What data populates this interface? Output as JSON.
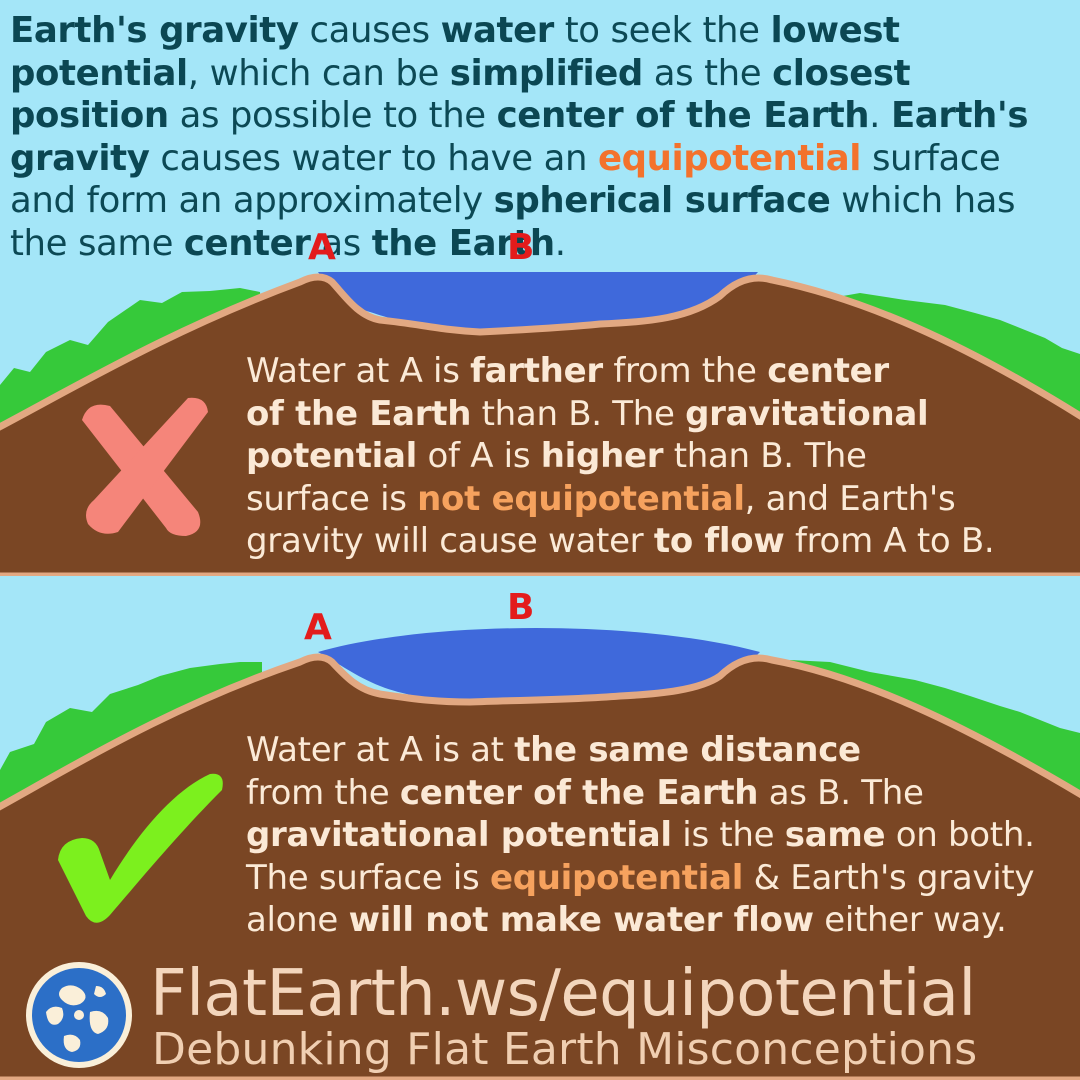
{
  "intro": {
    "segments": [
      {
        "t": "Earth's gravity",
        "s": "b"
      },
      {
        "t": " causes ",
        "s": ""
      },
      {
        "t": "water",
        "s": "b"
      },
      {
        "t": " to seek the ",
        "s": ""
      },
      {
        "t": "lowest potential",
        "s": "b"
      },
      {
        "t": ", which can be ",
        "s": ""
      },
      {
        "t": "simplified",
        "s": "b"
      },
      {
        "t": " as the ",
        "s": ""
      },
      {
        "t": "closest position",
        "s": "b"
      },
      {
        "t": " as possible to the ",
        "s": ""
      },
      {
        "t": "center of the Earth",
        "s": "b"
      },
      {
        "t": ". ",
        "s": ""
      },
      {
        "t": "Earth's gravity",
        "s": "b"
      },
      {
        "t": " causes water to have an ",
        "s": ""
      },
      {
        "t": "equipotential",
        "s": "orange"
      },
      {
        "t": " surface and form an approximately ",
        "s": ""
      },
      {
        "t": "spherical surface",
        "s": "b"
      },
      {
        "t": " which has the same ",
        "s": ""
      },
      {
        "t": "center",
        "s": "b"
      },
      {
        "t": " as ",
        "s": ""
      },
      {
        "t": "the Earth",
        "s": "b"
      },
      {
        "t": ".",
        "s": ""
      }
    ]
  },
  "panel_wrong": {
    "label_a": "A",
    "label_b": "B",
    "mark_icon": "cross-icon",
    "segments": [
      {
        "t": "Water at A is ",
        "s": ""
      },
      {
        "t": "farther",
        "s": "b"
      },
      {
        "t": " from the ",
        "s": ""
      },
      {
        "t": "center",
        "s": "b"
      },
      {
        "br": true
      },
      {
        "t": "of the Earth",
        "s": "b"
      },
      {
        "t": " than B. The ",
        "s": ""
      },
      {
        "t": "gravitational",
        "s": "b"
      },
      {
        "br": true
      },
      {
        "t": "potential",
        "s": "b"
      },
      {
        "t": " of A is ",
        "s": ""
      },
      {
        "t": "higher",
        "s": "b"
      },
      {
        "t": " than B. The",
        "s": ""
      },
      {
        "br": true
      },
      {
        "t": "surface is ",
        "s": ""
      },
      {
        "t": "not equipotential",
        "s": "orange"
      },
      {
        "t": ", and Earth's",
        "s": ""
      },
      {
        "br": true
      },
      {
        "t": "gravity will cause water ",
        "s": ""
      },
      {
        "t": "to flow",
        "s": "b"
      },
      {
        "t": " from A to B.",
        "s": ""
      }
    ]
  },
  "panel_right": {
    "label_a": "A",
    "label_b": "B",
    "mark_icon": "checkmark-icon",
    "segments": [
      {
        "t": "Water at A is at ",
        "s": ""
      },
      {
        "t": "the same distance",
        "s": "b"
      },
      {
        "br": true
      },
      {
        "t": "from the ",
        "s": ""
      },
      {
        "t": "center of the Earth",
        "s": "b"
      },
      {
        "t": " as B. The",
        "s": ""
      },
      {
        "br": true
      },
      {
        "t": "gravitational potential",
        "s": "b"
      },
      {
        "t": " is the ",
        "s": ""
      },
      {
        "t": "same",
        "s": "b"
      },
      {
        "t": " on both.",
        "s": ""
      },
      {
        "br": true
      },
      {
        "t": "The surface is ",
        "s": ""
      },
      {
        "t": "equipotential",
        "s": "orange"
      },
      {
        "t": " & Earth's gravity",
        "s": ""
      },
      {
        "br": true
      },
      {
        "t": "alone ",
        "s": ""
      },
      {
        "t": "will not make water flow",
        "s": "b"
      },
      {
        "t": " either way.",
        "s": ""
      }
    ]
  },
  "footer": {
    "logo_icon": "globe-logo-icon",
    "url": "FlatEarth.ws/equipotential",
    "tagline": "Debunking Flat Earth Misconceptions"
  },
  "colors": {
    "sky": "#a4e6f8",
    "ground": "#7a4624",
    "rim": "#e2a882",
    "grass": "#36c93a",
    "water": "#3f69db",
    "intro_text": "#0c4955",
    "highlight_orange": "#f3722c",
    "panel_text": "#fbead7",
    "cross": "#f5857a",
    "check": "#7cf01e",
    "point_label": "#e31c1c"
  }
}
